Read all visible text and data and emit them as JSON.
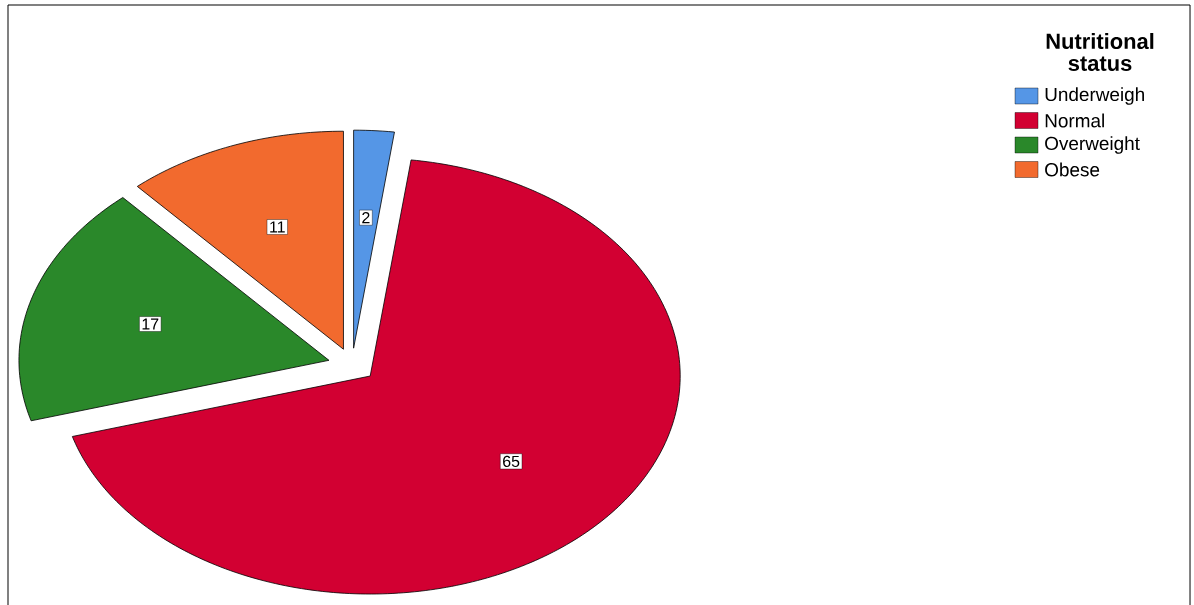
{
  "chart_data": {
    "type": "pie",
    "legend_title": "Nutritional status",
    "legend": "top right",
    "data_labels": true,
    "categories": [
      "Underweigh",
      "Normal",
      "Overweight",
      "Obese"
    ],
    "values": [
      2,
      65,
      17,
      11
    ],
    "colors": [
      "#5596e6",
      "#d20032",
      "#2a882a",
      "#f26a2e"
    ]
  }
}
